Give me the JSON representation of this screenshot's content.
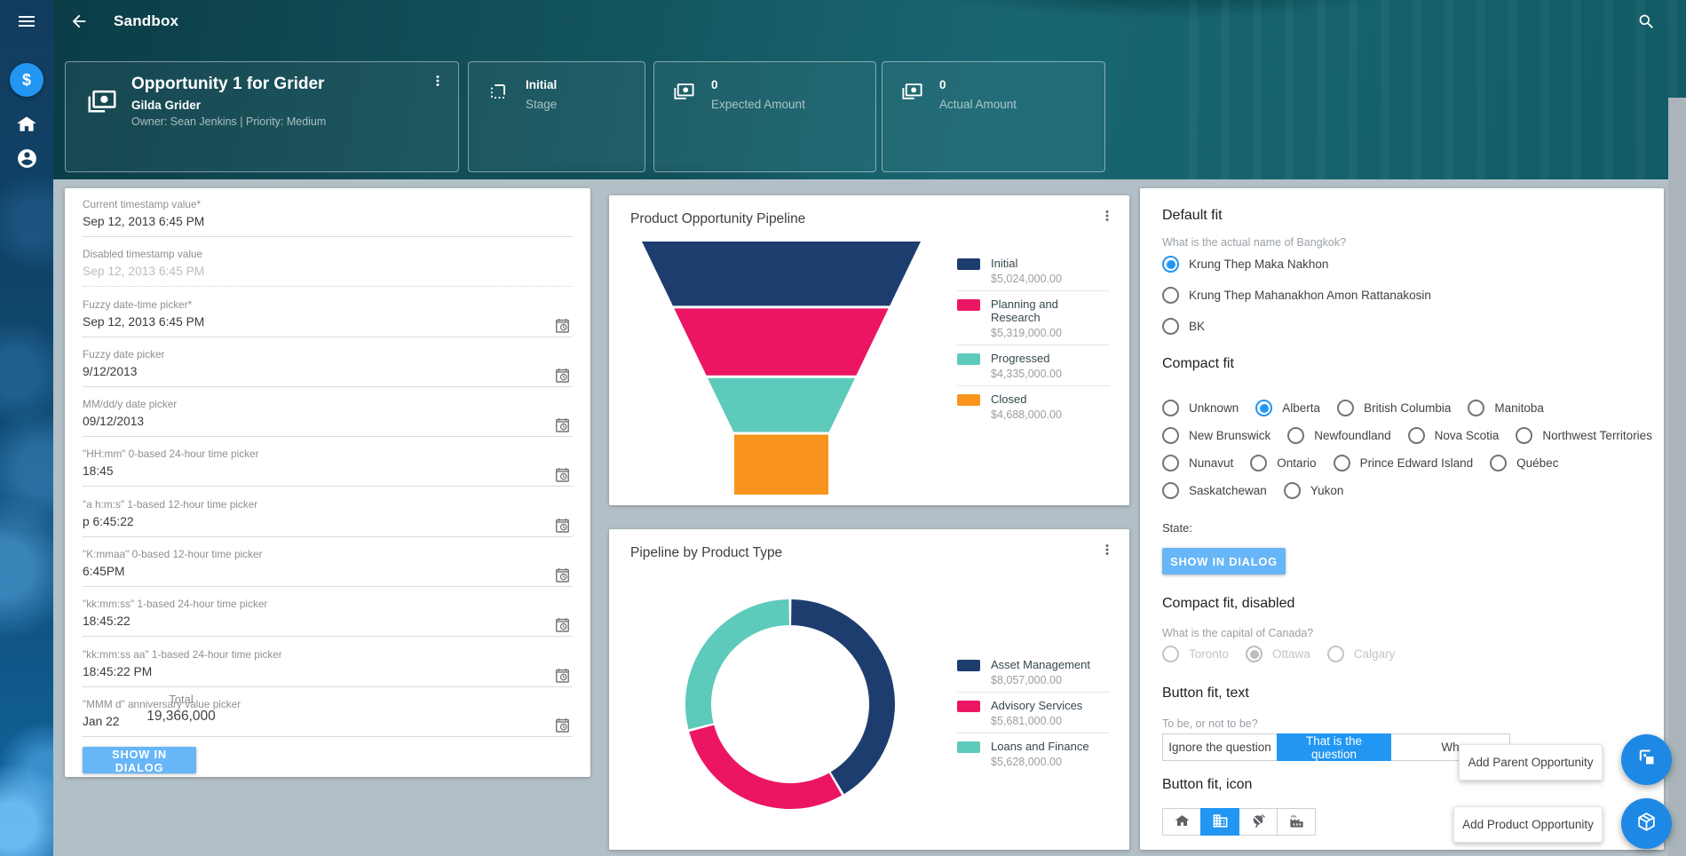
{
  "colors": {
    "primary": "#2196f3",
    "light_button": "#67b6f7",
    "navy": "#1e3d6f",
    "pink": "#ec1564",
    "teal": "#5ecabb",
    "orange": "#f8941d"
  },
  "topbar": {
    "title": "Sandbox"
  },
  "summary": {
    "opportunity": {
      "title": "Opportunity 1 for Grider",
      "person": "Gilda Grider",
      "meta": "Owner: Sean Jenkins | Priority: Medium"
    },
    "stats": [
      {
        "value": "Initial",
        "label": "Stage",
        "icon": "stage-icon"
      },
      {
        "value": "0",
        "label": "Expected Amount",
        "icon": "money-icon"
      },
      {
        "value": "0",
        "label": "Actual Amount",
        "icon": "money-icon"
      }
    ]
  },
  "pickers": {
    "fields": [
      {
        "label": "Current timestamp value*",
        "value": "Sep 12, 2013 6:45 PM",
        "disabled": false,
        "icon": false
      },
      {
        "label": "Disabled timestamp value",
        "value": "Sep 12, 2013 6:45 PM",
        "disabled": true,
        "icon": false
      },
      {
        "label": "Fuzzy date-time picker*",
        "value": "Sep 12, 2013 6:45 PM",
        "disabled": false,
        "icon": true
      },
      {
        "label": "Fuzzy date picker",
        "value": "9/12/2013",
        "disabled": false,
        "icon": true
      },
      {
        "label": "MM/dd/y date picker",
        "value": "09/12/2013",
        "disabled": false,
        "icon": true
      },
      {
        "label": "\"HH:mm\" 0-based 24-hour time picker",
        "value": "18:45",
        "disabled": false,
        "icon": true
      },
      {
        "label": "\"a h:m:s\" 1-based 12-hour time picker",
        "value": "p 6:45:22",
        "disabled": false,
        "icon": true
      },
      {
        "label": "\"K:mmaa\" 0-based 12-hour time picker",
        "value": "6:45PM",
        "disabled": false,
        "icon": true
      },
      {
        "label": "\"kk:mm:ss\" 1-based 24-hour time picker",
        "value": "18:45:22",
        "disabled": false,
        "icon": true
      },
      {
        "label": "\"kk:mm:ss aa\" 1-based 24-hour time picker",
        "value": "18:45:22 PM",
        "disabled": false,
        "icon": true
      },
      {
        "label": "\"MMM d\" anniversary value picker",
        "value": "Jan 22",
        "disabled": false,
        "icon": true
      }
    ],
    "dialog_button": "SHOW IN DIALOG"
  },
  "chart_data": [
    {
      "type": "funnel",
      "title": "Product Opportunity Pipeline",
      "legend_position": "right",
      "series": [
        {
          "name": "Initial",
          "value": 5024000,
          "display": "$5,024,000.00",
          "color": "#1e3d6f"
        },
        {
          "name": "Planning and Research",
          "value": 5319000,
          "display": "$5,319,000.00",
          "color": "#ec1564"
        },
        {
          "name": "Progressed",
          "value": 4335000,
          "display": "$4,335,000.00",
          "color": "#5ecabb"
        },
        {
          "name": "Closed",
          "value": 4688000,
          "display": "$4,688,000.00",
          "color": "#f8941d"
        }
      ]
    },
    {
      "type": "donut",
      "title": "Pipeline by Product Type",
      "legend_position": "right",
      "center_label": "Total",
      "center_value": "19,366,000",
      "series": [
        {
          "name": "Asset Management",
          "value": 8057000,
          "display": "$8,057,000.00",
          "color": "#1e3d6f"
        },
        {
          "name": "Advisory Services",
          "value": 5681000,
          "display": "$5,681,000.00",
          "color": "#ec1564"
        },
        {
          "name": "Loans and Finance",
          "value": 5628000,
          "display": "$5,628,000.00",
          "color": "#5ecabb"
        }
      ]
    }
  ],
  "fit_panel": {
    "default_fit": {
      "heading": "Default fit",
      "question": "What is the actual name of Bangkok?",
      "options": [
        "Krung Thep Maka Nakhon",
        "Krung Thep Mahanakhon Amon Rattanakosin",
        "BK"
      ],
      "selected": 0
    },
    "compact_fit": {
      "heading": "Compact fit",
      "rows": [
        [
          "Unknown",
          "Alberta",
          "British Columbia",
          "Manitoba"
        ],
        [
          "New Brunswick",
          "Newfoundland",
          "Nova Scotia",
          "Northwest Territories"
        ],
        [
          "Nunavut",
          "Ontario",
          "Prince Edward Island",
          "Québec"
        ],
        [
          "Saskatchewan",
          "Yukon"
        ]
      ],
      "selected": "Alberta",
      "state_label": "State:",
      "dialog_button": "SHOW IN DIALOG"
    },
    "compact_disabled": {
      "heading": "Compact fit, disabled",
      "question": "What is the capital of Canada?",
      "options": [
        "Toronto",
        "Ottawa",
        "Calgary"
      ],
      "selected": 1
    },
    "button_fit_text": {
      "heading": "Button fit, text",
      "question": "To be, or not to be?",
      "buttons": [
        "Ignore the question",
        "That is the question",
        "Wh"
      ],
      "selected": 1
    },
    "button_fit_icon": {
      "heading": "Button fit, icon",
      "icons": [
        "home-icon",
        "building-icon",
        "satellite-dish-icon",
        "factory-icon"
      ],
      "selected": 1
    }
  },
  "overlays": {
    "tooltips": [
      "Add Parent Opportunity",
      "Add Product Opportunity"
    ]
  }
}
